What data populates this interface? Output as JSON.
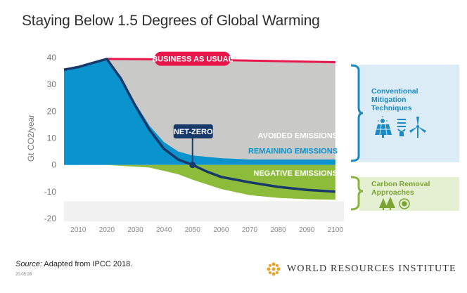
{
  "chart_data": {
    "type": "area",
    "title": "Staying Below 1.5 Degrees of Global Warming",
    "ylabel": "Gt CO2/year",
    "ylim": [
      -20,
      40
    ],
    "xlim": [
      2005,
      2103
    ],
    "y_ticks": [
      40,
      30,
      20,
      10,
      0,
      -10,
      -20
    ],
    "x_ticks": [
      2010,
      2020,
      2030,
      2040,
      2050,
      2060,
      2070,
      2080,
      2090,
      2100
    ],
    "series": [
      {
        "name": "BUSINESS AS USUAL",
        "points": [
          [
            2020,
            39.5
          ],
          [
            2050,
            39.3
          ],
          [
            2100,
            38.3
          ]
        ]
      },
      {
        "name": "AVOIDED EMISSIONS",
        "points": [
          [
            2020,
            39.5
          ],
          [
            2100,
            38.3
          ]
        ]
      },
      {
        "name": "REMAINING EMISSIONS",
        "points": [
          [
            2005,
            35.5
          ],
          [
            2010,
            36.5
          ],
          [
            2015,
            38
          ],
          [
            2020,
            39.5
          ],
          [
            2025,
            33
          ],
          [
            2030,
            23
          ],
          [
            2035,
            14.5
          ],
          [
            2040,
            8.5
          ],
          [
            2045,
            5
          ],
          [
            2050,
            3.5
          ],
          [
            2060,
            2.5
          ],
          [
            2070,
            2
          ],
          [
            2080,
            2
          ],
          [
            2090,
            2
          ],
          [
            2100,
            2
          ]
        ]
      },
      {
        "name": "NEGATIVE EMISSIONS",
        "points": [
          [
            2020,
            0
          ],
          [
            2035,
            -1
          ],
          [
            2045,
            -3.5
          ],
          [
            2050,
            -5.5
          ],
          [
            2060,
            -9
          ],
          [
            2070,
            -11.3
          ],
          [
            2080,
            -12.3
          ],
          [
            2090,
            -12.8
          ],
          [
            2100,
            -13
          ]
        ]
      },
      {
        "name": "NET-ZERO",
        "points": [
          [
            2005,
            35.5
          ],
          [
            2010,
            36.5
          ],
          [
            2015,
            38
          ],
          [
            2020,
            39.5
          ],
          [
            2025,
            32
          ],
          [
            2030,
            22
          ],
          [
            2035,
            13
          ],
          [
            2040,
            6
          ],
          [
            2045,
            2
          ],
          [
            2050,
            0
          ],
          [
            2055,
            -2.5
          ],
          [
            2060,
            -4.5
          ],
          [
            2070,
            -6.5
          ],
          [
            2080,
            -8.2
          ],
          [
            2090,
            -9.3
          ],
          [
            2100,
            -10
          ]
        ]
      }
    ],
    "annotations": [
      "BUSINESS AS USUAL",
      "NET-ZERO",
      "AVOIDED EMISSIONS",
      "REMAINING EMISSIONS",
      "NEGATIVE EMISSIONS"
    ],
    "net_zero_year": 2050,
    "grid": false,
    "colors": {
      "bau": "#e8174b",
      "avoided": "#c9c9c7",
      "remaining": "#0a93cd",
      "negative": "#8dbb3a",
      "net_zero_line": "#173a6b",
      "panel_blue": "#dcecf6",
      "panel_green": "#e5f0d2",
      "bracket_blue": "#1b8ac2",
      "bracket_green": "#8ab640"
    }
  },
  "side_panels": [
    {
      "title": "Conventional Mitigation Techniques",
      "title_lines": [
        "Conventional",
        "Mitigation",
        "Techniques"
      ],
      "icons": [
        "solar-panel-icon",
        "light-bulb-icon",
        "wind-turbine-icon"
      ]
    },
    {
      "title": "Carbon Removal Approaches",
      "title_lines": [
        "Carbon Removal",
        "Approaches"
      ],
      "icons": [
        "trees-icon",
        "soil-icon"
      ]
    }
  ],
  "source": {
    "label": "Source:",
    "text": " Adapted from IPCC 2018."
  },
  "date_code": "20.05.28",
  "org": {
    "name": "WORLD RESOURCES INSTITUTE"
  }
}
